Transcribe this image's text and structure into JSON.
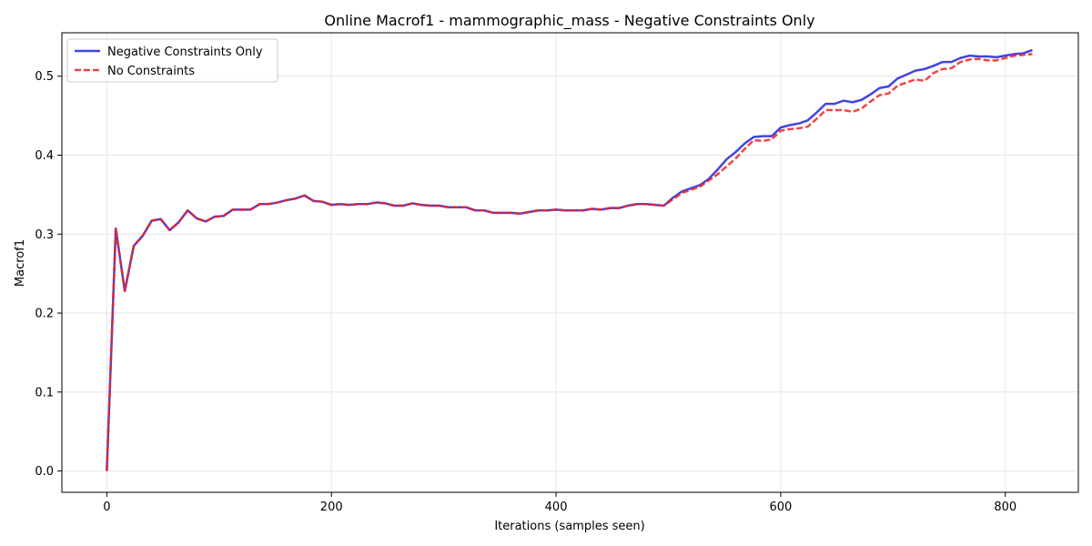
{
  "chart_data": {
    "type": "line",
    "title": "Online Macrof1 - mammographic_mass - Negative Constraints Only",
    "xlabel": "Iterations (samples seen)",
    "ylabel": "Macrof1",
    "xlim": [
      -40,
      865
    ],
    "ylim": [
      -0.027,
      0.555
    ],
    "xticks": [
      0,
      200,
      400,
      600,
      800
    ],
    "yticks": [
      0.0,
      0.1,
      0.2,
      0.3,
      0.4,
      0.5
    ],
    "xtick_labels": [
      "0",
      "200",
      "400",
      "600",
      "800"
    ],
    "ytick_labels": [
      "0.0",
      "0.1",
      "0.2",
      "0.3",
      "0.4",
      "0.5"
    ],
    "grid": true,
    "legend_position": "top-left",
    "x": [
      0,
      8,
      16,
      24,
      32,
      40,
      48,
      56,
      64,
      72,
      80,
      88,
      96,
      104,
      112,
      120,
      128,
      136,
      144,
      152,
      160,
      168,
      176,
      184,
      192,
      200,
      208,
      216,
      224,
      232,
      240,
      248,
      256,
      264,
      272,
      280,
      288,
      296,
      304,
      312,
      320,
      328,
      336,
      344,
      352,
      360,
      368,
      376,
      384,
      392,
      400,
      408,
      416,
      424,
      432,
      440,
      448,
      456,
      464,
      472,
      480,
      488,
      496,
      504,
      512,
      520,
      528,
      536,
      544,
      552,
      560,
      568,
      576,
      584,
      592,
      600,
      608,
      616,
      624,
      632,
      640,
      648,
      656,
      664,
      672,
      680,
      688,
      696,
      704,
      712,
      720,
      728,
      736,
      744,
      752,
      760,
      768,
      776,
      784,
      792,
      800,
      808,
      816,
      824
    ],
    "series": [
      {
        "name": "Negative Constraints Only",
        "color": "#2222dd",
        "style": "solid",
        "values": [
          0.0,
          0.307,
          0.228,
          0.285,
          0.298,
          0.317,
          0.319,
          0.305,
          0.315,
          0.33,
          0.32,
          0.316,
          0.322,
          0.323,
          0.331,
          0.331,
          0.331,
          0.338,
          0.338,
          0.34,
          0.343,
          0.345,
          0.349,
          0.342,
          0.341,
          0.337,
          0.338,
          0.337,
          0.338,
          0.338,
          0.34,
          0.339,
          0.336,
          0.336,
          0.339,
          0.337,
          0.336,
          0.336,
          0.334,
          0.334,
          0.334,
          0.33,
          0.33,
          0.327,
          0.327,
          0.327,
          0.326,
          0.328,
          0.33,
          0.33,
          0.331,
          0.33,
          0.33,
          0.33,
          0.332,
          0.331,
          0.333,
          0.333,
          0.336,
          0.338,
          0.338,
          0.337,
          0.336,
          0.346,
          0.354,
          0.358,
          0.362,
          0.37,
          0.382,
          0.395,
          0.404,
          0.415,
          0.423,
          0.424,
          0.424,
          0.435,
          0.438,
          0.44,
          0.444,
          0.454,
          0.465,
          0.465,
          0.469,
          0.467,
          0.47,
          0.477,
          0.485,
          0.487,
          0.497,
          0.502,
          0.507,
          0.509,
          0.513,
          0.518,
          0.518,
          0.523,
          0.526,
          0.525,
          0.525,
          0.524,
          0.526,
          0.528,
          0.529,
          0.533
        ]
      },
      {
        "name": "No Constraints",
        "color": "#ee2222",
        "style": "dashed",
        "values": [
          0.0,
          0.307,
          0.228,
          0.285,
          0.298,
          0.317,
          0.319,
          0.305,
          0.315,
          0.33,
          0.32,
          0.316,
          0.322,
          0.323,
          0.331,
          0.331,
          0.331,
          0.338,
          0.338,
          0.34,
          0.343,
          0.345,
          0.349,
          0.342,
          0.341,
          0.337,
          0.338,
          0.337,
          0.338,
          0.338,
          0.34,
          0.339,
          0.336,
          0.336,
          0.339,
          0.337,
          0.336,
          0.336,
          0.334,
          0.334,
          0.334,
          0.33,
          0.33,
          0.327,
          0.327,
          0.327,
          0.326,
          0.328,
          0.33,
          0.33,
          0.331,
          0.33,
          0.33,
          0.33,
          0.332,
          0.331,
          0.333,
          0.333,
          0.336,
          0.338,
          0.338,
          0.337,
          0.336,
          0.344,
          0.352,
          0.356,
          0.36,
          0.368,
          0.376,
          0.386,
          0.396,
          0.408,
          0.419,
          0.418,
          0.42,
          0.431,
          0.433,
          0.434,
          0.436,
          0.446,
          0.457,
          0.457,
          0.457,
          0.455,
          0.459,
          0.468,
          0.476,
          0.478,
          0.488,
          0.492,
          0.496,
          0.494,
          0.504,
          0.509,
          0.51,
          0.518,
          0.521,
          0.522,
          0.52,
          0.52,
          0.523,
          0.526,
          0.527,
          0.528
        ]
      }
    ]
  }
}
